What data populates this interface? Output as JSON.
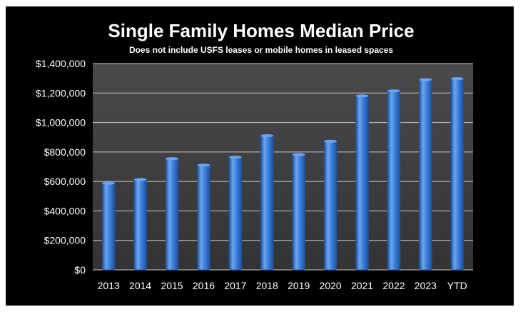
{
  "chart_data": {
    "type": "bar",
    "title": "Single Family Homes Median Price",
    "subtitle": "Does not include USFS leases or mobile homes in leased spaces",
    "xlabel": "",
    "ylabel": "",
    "categories": [
      "2013",
      "2014",
      "2015",
      "2016",
      "2017",
      "2018",
      "2019",
      "2020",
      "2021",
      "2022",
      "2023",
      "YTD"
    ],
    "values": [
      595000,
      620000,
      762000,
      718000,
      772000,
      918000,
      790000,
      880000,
      1188000,
      1222000,
      1298000,
      1305000
    ],
    "ylim": [
      0,
      1400000
    ],
    "yticks": [
      0,
      200000,
      400000,
      600000,
      800000,
      1000000,
      1200000,
      1400000
    ],
    "ytick_labels": [
      "$0",
      "$200,000",
      "$400,000",
      "$600,000",
      "$800,000",
      "$1,000,000",
      "$1,200,000",
      "$1,400,000"
    ],
    "grid": true,
    "legend": "none",
    "colors": {
      "background": "#000000",
      "plot_area": "#3f3f3f",
      "gridline": "#c8c8c8",
      "bar_light": "#6aa6f0",
      "bar_mid": "#3b7fd9",
      "bar_dark": "#1e4f9c",
      "text": "#ffffff"
    }
  }
}
